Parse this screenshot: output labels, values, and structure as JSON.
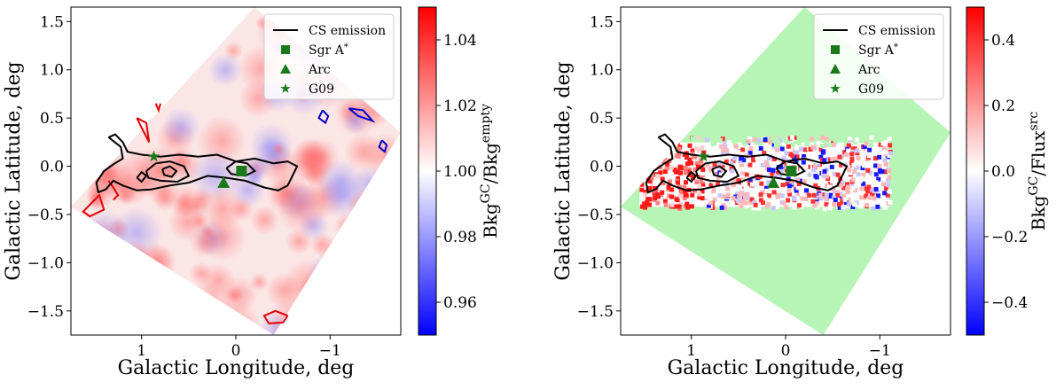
{
  "chart_data": [
    {
      "type": "heatmap",
      "title": "",
      "xlabel": "Galactic Longitude,  deg",
      "ylabel": "Galactic Latitude,  deg",
      "xlim": [
        1.75,
        -1.75
      ],
      "ylim": [
        -1.75,
        1.65
      ],
      "xticks": [
        1,
        0,
        -1
      ],
      "xtick_labels": [
        "1",
        "0",
        "−1"
      ],
      "yticks": [
        1.5,
        1.0,
        0.5,
        0.0,
        -0.5,
        -1.0,
        -1.5
      ],
      "ytick_labels": [
        "1.5",
        "1.0",
        "0.5",
        "0.0",
        "−0.5",
        "−1.0",
        "−1.5"
      ],
      "map_corners_lb": [
        [
          -0.2,
          1.65
        ],
        [
          -1.75,
          0.35
        ],
        [
          -0.4,
          -1.75
        ],
        [
          1.75,
          -0.42
        ]
      ],
      "colorbar": {
        "label": "Bkg",
        "label_sup1": "GC",
        "label_mid": "/Bkg",
        "label_sup2": "empty",
        "range": [
          0.95,
          1.05
        ],
        "ticks": [
          0.96,
          0.98,
          1.0,
          1.02,
          1.04
        ],
        "tick_labels": [
          "0.96",
          "0.98",
          "1.00",
          "1.02",
          "1.04"
        ],
        "cmap": [
          "#0000ff",
          "#ffffff",
          "#ff0000"
        ]
      },
      "markers": [
        {
          "name": "Sgr A*",
          "shape": "square",
          "l": -0.06,
          "b": -0.05
        },
        {
          "name": "Arc",
          "shape": "triangle",
          "l": 0.13,
          "b": -0.17
        },
        {
          "name": "G09",
          "shape": "star",
          "l": 0.87,
          "b": 0.1
        }
      ],
      "legend": {
        "position": "top-right",
        "entries": [
          "CS emission",
          "Sgr A",
          "Arc",
          "G09"
        ],
        "sgr_sup": "*"
      }
    },
    {
      "type": "heatmap",
      "title": "",
      "xlabel": "Galactic Longitude,  deg",
      "ylabel": "Galactic Latitude,  deg",
      "xlim": [
        1.75,
        -1.75
      ],
      "ylim": [
        -1.75,
        1.65
      ],
      "xticks": [
        1,
        0,
        -1
      ],
      "xtick_labels": [
        "1",
        "0",
        "−1"
      ],
      "yticks": [
        1.5,
        1.0,
        0.5,
        0.0,
        -0.5,
        -1.0,
        -1.5
      ],
      "ytick_labels": [
        "1.5",
        "1.0",
        "0.5",
        "0.0",
        "−0.5",
        "−1.0",
        "−1.5"
      ],
      "map_corners_lb": [
        [
          -0.2,
          1.65
        ],
        [
          -1.75,
          0.35
        ],
        [
          -0.4,
          -1.75
        ],
        [
          1.75,
          -0.42
        ]
      ],
      "data_region_lb": {
        "l_range": [
          1.55,
          -1.1
        ],
        "b_range": [
          -0.42,
          0.32
        ]
      },
      "colorbar": {
        "label": "Bkg",
        "label_sup1": "GC",
        "label_mid": "/Flux",
        "label_sup2": "src",
        "range": [
          -0.5,
          0.5
        ],
        "ticks": [
          -0.4,
          -0.2,
          0.0,
          0.2,
          0.4
        ],
        "tick_labels": [
          "−0.4",
          "−0.2",
          "0.0",
          "0.2",
          "0.4"
        ],
        "cmap": [
          "#0000ff",
          "#ffffff",
          "#ff0000"
        ]
      },
      "markers": [
        {
          "name": "Sgr A*",
          "shape": "square",
          "l": -0.06,
          "b": -0.05
        },
        {
          "name": "Arc",
          "shape": "triangle",
          "l": 0.13,
          "b": -0.17
        },
        {
          "name": "G09",
          "shape": "star",
          "l": 0.87,
          "b": 0.1
        }
      ],
      "legend": {
        "position": "top-right",
        "entries": [
          "CS emission",
          "Sgr A",
          "Arc",
          "G09"
        ],
        "sgr_sup": "*"
      }
    }
  ],
  "colors": {
    "contour": "#000000",
    "marker": "#1a7a1a",
    "empty_fill": "#b6f5b6",
    "red_contour": "#e00000",
    "blue_contour": "#0000cc"
  }
}
